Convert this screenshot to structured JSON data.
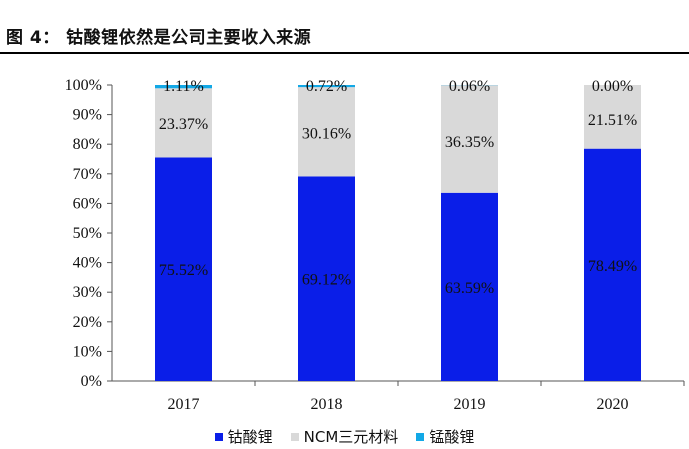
{
  "figure_title": "图 4： 钴酸锂依然是公司主要收入来源",
  "chart_data": {
    "type": "bar",
    "stacked": true,
    "categories": [
      "2017",
      "2018",
      "2019",
      "2020"
    ],
    "series": [
      {
        "name": "钴酸锂",
        "color": "#0a1ee8",
        "values": [
          75.52,
          69.12,
          63.59,
          78.49
        ],
        "labels": [
          "75.52%",
          "69.12%",
          "63.59%",
          "78.49%"
        ]
      },
      {
        "name": "NCM三元材料",
        "color": "#d9d9d9",
        "values": [
          23.37,
          30.16,
          36.35,
          21.51
        ],
        "labels": [
          "23.37%",
          "30.16%",
          "36.35%",
          "21.51%"
        ]
      },
      {
        "name": "锰酸锂",
        "color": "#12a8e6",
        "values": [
          1.11,
          0.72,
          0.06,
          0.0
        ],
        "labels": [
          "1.11%",
          "0.72%",
          "0.06%",
          "0.00%"
        ]
      }
    ],
    "ylim": [
      0,
      100
    ],
    "yticks": [
      "0%",
      "10%",
      "20%",
      "30%",
      "40%",
      "50%",
      "60%",
      "70%",
      "80%",
      "90%",
      "100%"
    ],
    "grid": false,
    "legend_position": "bottom"
  }
}
